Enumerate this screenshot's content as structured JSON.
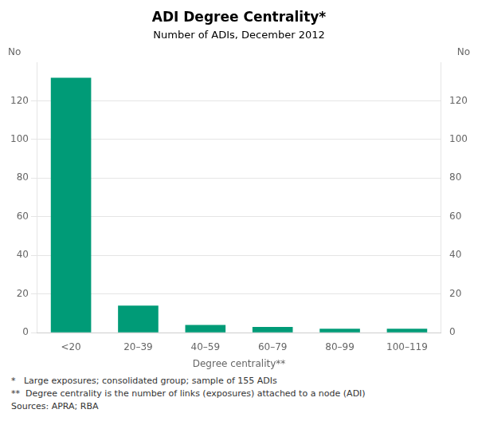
{
  "chart_data": {
    "type": "bar",
    "title": "ADI Degree Centrality*",
    "subtitle": "Number of ADIs, December 2012",
    "categories": [
      "<20",
      "20–39",
      "40–59",
      "60–79",
      "80–99",
      "100–119"
    ],
    "values": [
      132,
      14,
      4,
      3,
      2,
      2
    ],
    "color": "#009B77",
    "xlabel": "Degree centrality**",
    "ylabel": "No",
    "y2label": "No",
    "ylim": [
      0,
      140
    ],
    "yticks": [
      0,
      20,
      40,
      60,
      80,
      100,
      120
    ],
    "y2lim": [
      0,
      140
    ],
    "y2ticks": [
      0,
      20,
      40,
      60,
      80,
      100,
      120
    ],
    "grid": true,
    "footnotes": [
      "*   Large exposures; consolidated group; sample of 155 ADIs",
      "**  Degree centrality is the number of links (exposures) attached to a node (ADI)",
      "Sources: APRA; RBA"
    ]
  }
}
